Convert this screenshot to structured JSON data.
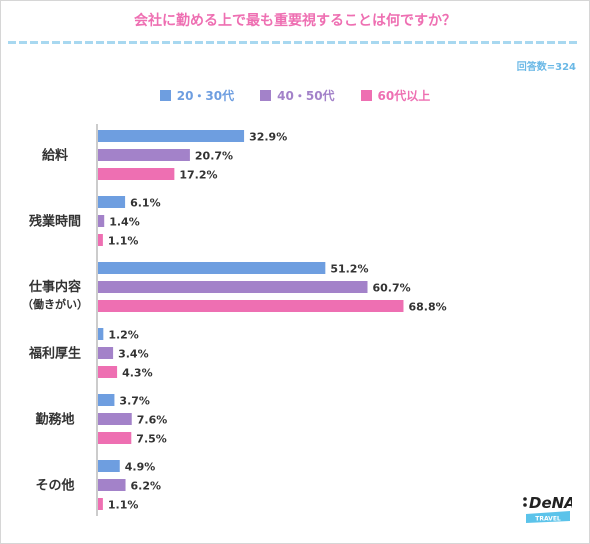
{
  "title": "会社に勤める上で最も重要視することは何ですか？",
  "respondents": "回答数=324",
  "colors": {
    "series": [
      "#6e9ee0",
      "#a382c9",
      "#ee6fb2"
    ],
    "title": "#ee6fb2",
    "axis": "#999999"
  },
  "logo": {
    "brand": "DeNA",
    "sub": "TRAVEL"
  },
  "chart_data": {
    "type": "bar",
    "orientation": "horizontal",
    "title": "会社に勤める上で最も重要視することは何ですか？",
    "categories": [
      "給料",
      "残業時間",
      "仕事内容\n（働きがい）",
      "福利厚生",
      "勤務地",
      "その他"
    ],
    "series": [
      {
        "name": "20・30代",
        "values": [
          32.9,
          6.1,
          51.2,
          1.2,
          3.7,
          4.9
        ]
      },
      {
        "name": "40・50代",
        "values": [
          20.7,
          1.4,
          60.7,
          3.4,
          7.6,
          6.2
        ]
      },
      {
        "name": "60代以上",
        "values": [
          17.2,
          1.1,
          68.8,
          4.3,
          7.5,
          1.1
        ]
      }
    ],
    "value_suffix": "%",
    "xlim": [
      0,
      100
    ],
    "grid": false,
    "legend": "top-center"
  }
}
